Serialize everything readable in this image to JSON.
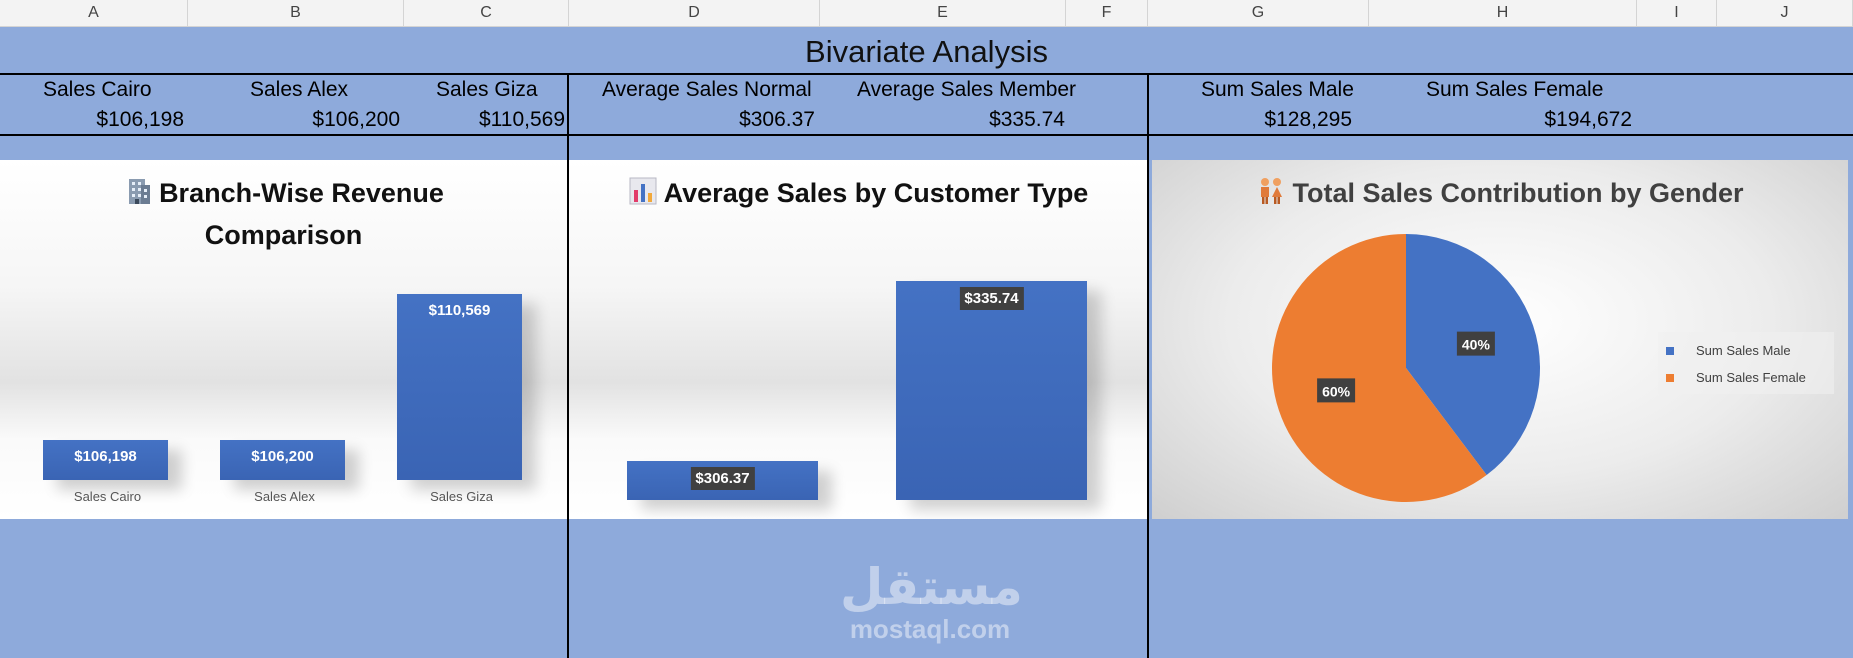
{
  "columns": [
    "A",
    "B",
    "C",
    "D",
    "E",
    "F",
    "G",
    "H",
    "I",
    "J"
  ],
  "title": "Bivariate Analysis",
  "kpis": {
    "branch": [
      {
        "label": "Sales Cairo",
        "value": "$106,198"
      },
      {
        "label": "Sales Alex",
        "value": "$106,200"
      },
      {
        "label": "Sales Giza",
        "value": "$110,569"
      }
    ],
    "customer": [
      {
        "label": "Average  Sales Normal",
        "value": "$306.37"
      },
      {
        "label": "Average  Sales Member",
        "value": "$335.74"
      }
    ],
    "gender": [
      {
        "label": "Sum Sales Male",
        "value": "$128,295"
      },
      {
        "label": "Sum  Sales Female",
        "value": "$194,672"
      }
    ]
  },
  "colors": {
    "blue": "#4472c4",
    "orange": "#ed7d31",
    "band": "#8eaadb"
  },
  "chart_data": [
    {
      "type": "bar",
      "title_line1": "Branch-Wise Revenue",
      "title_line2": "Comparison",
      "icon": "office-building-icon",
      "categories": [
        "Sales Cairo",
        "Sales Alex",
        "Sales Giza"
      ],
      "values": [
        106198,
        106200,
        110569
      ],
      "labels": [
        "$106,198",
        "$106,200",
        "$110,569"
      ],
      "ylim": [
        105000,
        111000
      ]
    },
    {
      "type": "bar",
      "title": "Average Sales by Customer Type",
      "icon": "bar-chart-icon",
      "values": [
        306.37,
        335.74
      ],
      "labels": [
        "$306.37",
        "$335.74"
      ],
      "ylim": [
        300,
        340
      ]
    },
    {
      "type": "pie",
      "title": "Total Sales Contribution by Gender",
      "icon": "people-icon",
      "slices": [
        {
          "name": "Sum Sales Male",
          "value": 128295,
          "percent": 40,
          "label": "40%",
          "color": "#4472c4"
        },
        {
          "name": "Sum  Sales Female",
          "value": 194672,
          "percent": 60,
          "label": "60%",
          "color": "#ed7d31"
        }
      ],
      "legend_position": "right"
    }
  ],
  "watermark": {
    "arabic": "مستقل",
    "latin": "mostaql.com"
  }
}
